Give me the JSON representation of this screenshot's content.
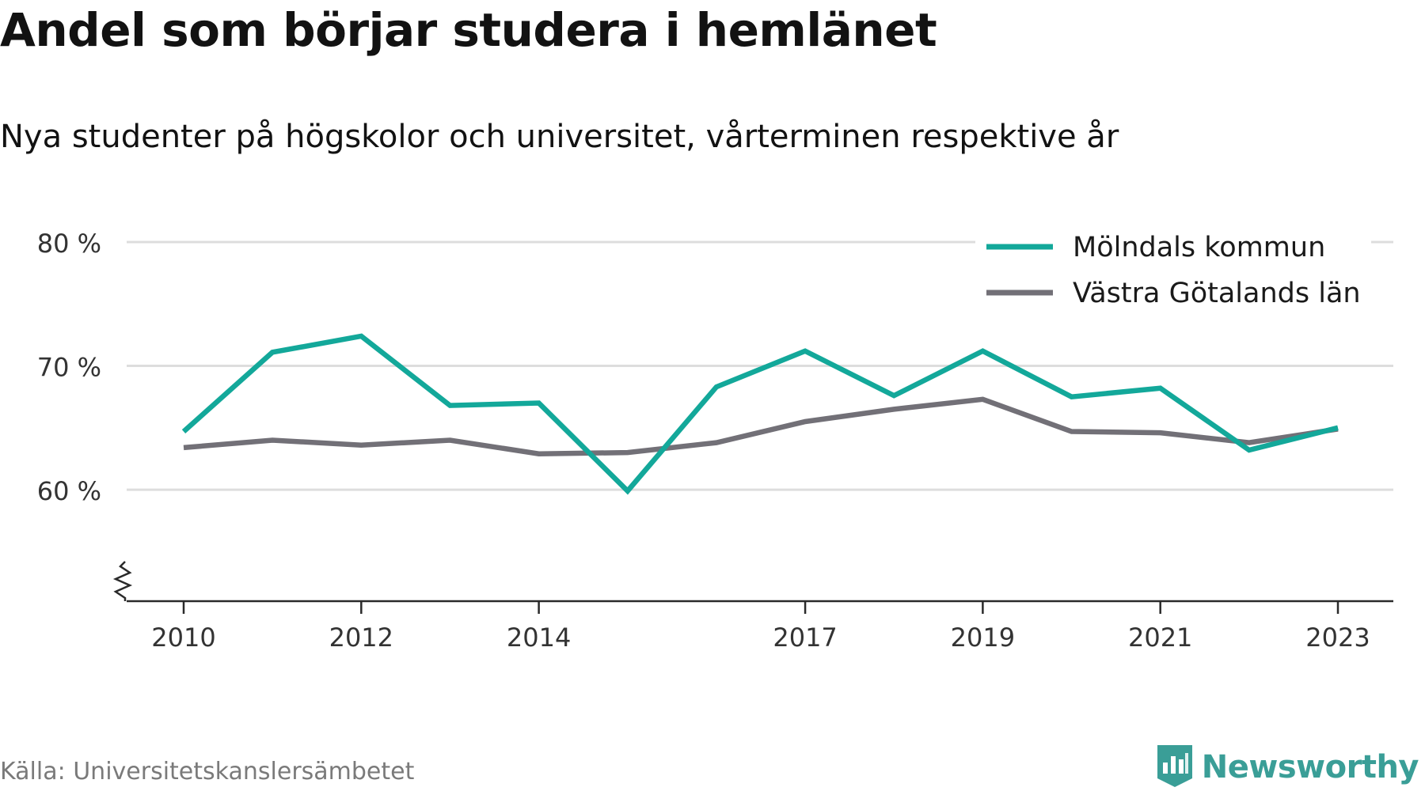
{
  "title": "Andel som börjar studera i hemlänet",
  "subtitle": "Nya studenter på högskolor och universitet, vårterminen respektive år",
  "source": "Källa: Universitetskanslersämbetet",
  "brand": {
    "name": "Newsworthy",
    "icon": "newsworthy-logo-icon",
    "color": "#3a9e97"
  },
  "chart_data": {
    "type": "line",
    "x": [
      2010,
      2011,
      2012,
      2013,
      2014,
      2015,
      2016,
      2017,
      2018,
      2019,
      2020,
      2021,
      2022,
      2023
    ],
    "x_ticks": [
      2010,
      2012,
      2014,
      2017,
      2019,
      2021,
      2023
    ],
    "y_ticks": [
      60,
      70,
      80
    ],
    "y_tick_labels": [
      "60 %",
      "70 %",
      "80 %"
    ],
    "ylim": [
      51,
      80
    ],
    "y_axis_break": true,
    "grid": true,
    "legend_position": "top-right",
    "series": [
      {
        "name": "Mölndals kommun",
        "color": "#13a89a",
        "values": [
          64.7,
          71.1,
          72.4,
          66.8,
          67.0,
          59.9,
          68.3,
          71.2,
          67.6,
          71.2,
          67.5,
          68.2,
          63.2,
          65.0
        ]
      },
      {
        "name": "Västra Götalands län",
        "color": "#727077",
        "values": [
          63.4,
          64.0,
          63.6,
          64.0,
          62.9,
          63.0,
          63.8,
          65.5,
          66.5,
          67.3,
          64.7,
          64.6,
          63.8,
          64.9
        ]
      }
    ]
  }
}
